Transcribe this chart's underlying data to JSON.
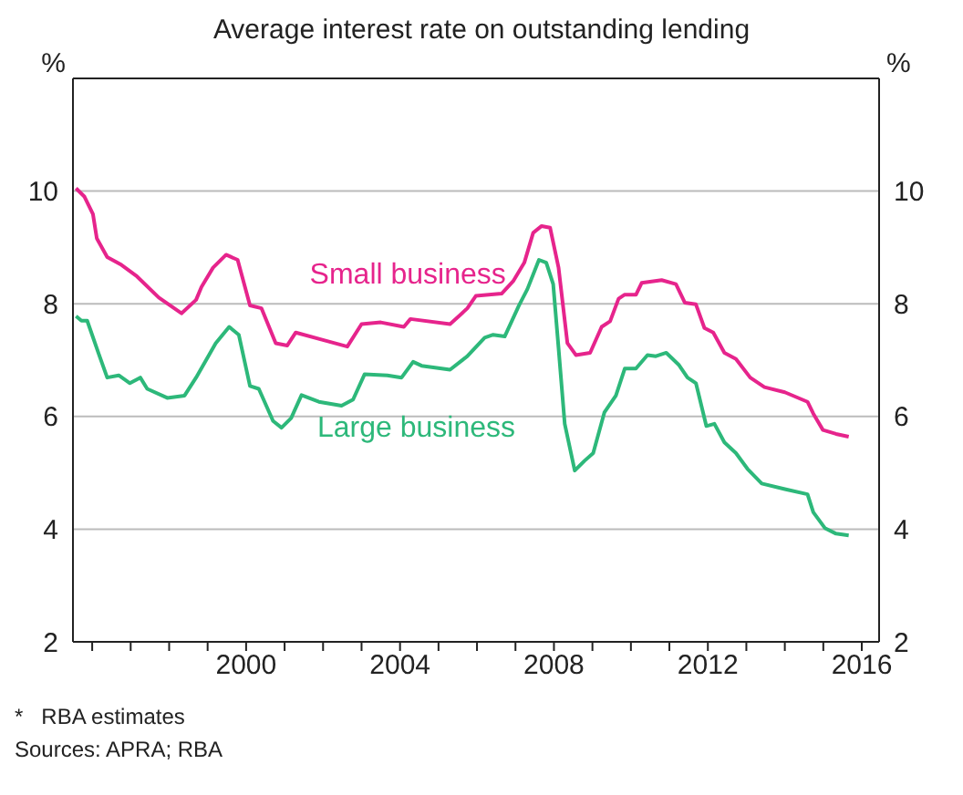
{
  "chart_data": {
    "type": "line",
    "title": "Average interest rate on outstanding lending",
    "ylabel": "%",
    "y2label": "%",
    "xlim": [
      1995.5,
      2016.45
    ],
    "xticks": [
      {
        "value": 1996,
        "label": null
      },
      {
        "value": 1997,
        "label": null
      },
      {
        "value": 1998,
        "label": null
      },
      {
        "value": 1999,
        "label": null
      },
      {
        "value": 2000,
        "label": "2000"
      },
      {
        "value": 2001,
        "label": null
      },
      {
        "value": 2002,
        "label": null
      },
      {
        "value": 2003,
        "label": null
      },
      {
        "value": 2004,
        "label": "2004"
      },
      {
        "value": 2005,
        "label": null
      },
      {
        "value": 2006,
        "label": null
      },
      {
        "value": 2007,
        "label": null
      },
      {
        "value": 2008,
        "label": "2008"
      },
      {
        "value": 2009,
        "label": null
      },
      {
        "value": 2010,
        "label": null
      },
      {
        "value": 2011,
        "label": null
      },
      {
        "value": 2012,
        "label": "2012"
      },
      {
        "value": 2013,
        "label": null
      },
      {
        "value": 2014,
        "label": null
      },
      {
        "value": 2015,
        "label": null
      },
      {
        "value": 2016,
        "label": "2016"
      }
    ],
    "ylim": [
      2,
      12
    ],
    "yticks": [
      2,
      4,
      6,
      8,
      10
    ],
    "y2lim": [
      2,
      12
    ],
    "y2ticks": [
      2,
      4,
      6,
      8,
      10
    ],
    "grid": "y",
    "legend": false,
    "marker": "none",
    "line_style": "solid",
    "annotations": [
      "*   RBA estimates",
      "Sources: APRA; RBA"
    ],
    "series": [
      {
        "name": "Small business",
        "color": "#e6248c",
        "x": [
          1995.58,
          1995.8,
          1996.02,
          1996.12,
          1996.39,
          1996.76,
          1997.14,
          1997.73,
          1998.32,
          1998.7,
          1998.84,
          1999.14,
          1999.48,
          1999.78,
          2000.1,
          2000.4,
          2000.77,
          2001.07,
          2001.29,
          2002.04,
          2002.63,
          2003.0,
          2003.5,
          2004.1,
          2004.27,
          2005.3,
          2005.53,
          2005.75,
          2005.97,
          2006.64,
          2006.94,
          2007.23,
          2007.46,
          2007.68,
          2007.9,
          2008.12,
          2008.35,
          2008.57,
          2008.94,
          2009.24,
          2009.46,
          2009.68,
          2009.83,
          2010.13,
          2010.28,
          2010.8,
          2011.17,
          2011.4,
          2011.69,
          2011.91,
          2012.14,
          2012.43,
          2012.73,
          2013.1,
          2013.47,
          2014.0,
          2014.59,
          2014.74,
          2014.99,
          2015.33,
          2015.66
        ],
        "values": [
          10.05,
          9.9,
          9.59,
          9.16,
          8.83,
          8.69,
          8.5,
          8.11,
          7.83,
          8.07,
          8.3,
          8.64,
          8.87,
          8.78,
          7.97,
          7.92,
          7.3,
          7.26,
          7.49,
          7.35,
          7.24,
          7.64,
          7.67,
          7.59,
          7.73,
          7.64,
          7.78,
          7.92,
          8.14,
          8.18,
          8.4,
          8.73,
          9.26,
          9.38,
          9.35,
          8.64,
          7.3,
          7.09,
          7.13,
          7.59,
          7.69,
          8.09,
          8.16,
          8.16,
          8.37,
          8.42,
          8.35,
          8.02,
          7.99,
          7.57,
          7.49,
          7.13,
          7.02,
          6.69,
          6.52,
          6.43,
          6.26,
          6.05,
          5.76,
          5.69,
          5.64
        ]
      },
      {
        "name": "Large business",
        "color": "#2db87a",
        "x": [
          1995.58,
          1995.72,
          1995.87,
          1996.17,
          1996.39,
          1996.69,
          1996.98,
          1997.25,
          1997.43,
          1997.95,
          1998.4,
          1998.7,
          1999.21,
          1999.56,
          1999.81,
          2000.1,
          2000.33,
          2000.7,
          2000.92,
          2001.17,
          2001.44,
          2001.89,
          2002.48,
          2002.78,
          2003.08,
          2003.67,
          2004.04,
          2004.34,
          2004.56,
          2005.3,
          2005.75,
          2006.2,
          2006.42,
          2006.72,
          2007.09,
          2007.31,
          2007.61,
          2007.8,
          2007.98,
          2008.12,
          2008.28,
          2008.54,
          2008.79,
          2009.02,
          2009.31,
          2009.61,
          2009.84,
          2010.13,
          2010.43,
          2010.65,
          2010.92,
          2011.24,
          2011.47,
          2011.69,
          2011.96,
          2012.17,
          2012.43,
          2012.73,
          2013.03,
          2013.4,
          2014.0,
          2014.59,
          2014.74,
          2015.04,
          2015.33,
          2015.66
        ],
        "values": [
          7.78,
          7.7,
          7.7,
          7.11,
          6.69,
          6.73,
          6.59,
          6.69,
          6.49,
          6.33,
          6.37,
          6.69,
          7.3,
          7.59,
          7.45,
          6.54,
          6.49,
          5.92,
          5.8,
          5.97,
          6.38,
          6.26,
          6.19,
          6.3,
          6.75,
          6.73,
          6.69,
          6.97,
          6.9,
          6.83,
          7.07,
          7.4,
          7.45,
          7.42,
          7.97,
          8.26,
          8.78,
          8.73,
          8.35,
          7.21,
          5.87,
          5.04,
          5.21,
          5.35,
          6.07,
          6.37,
          6.85,
          6.85,
          7.09,
          7.07,
          7.13,
          6.92,
          6.69,
          6.59,
          5.83,
          5.87,
          5.54,
          5.35,
          5.07,
          4.81,
          4.71,
          4.62,
          4.3,
          4.02,
          3.92,
          3.89
        ]
      }
    ]
  }
}
